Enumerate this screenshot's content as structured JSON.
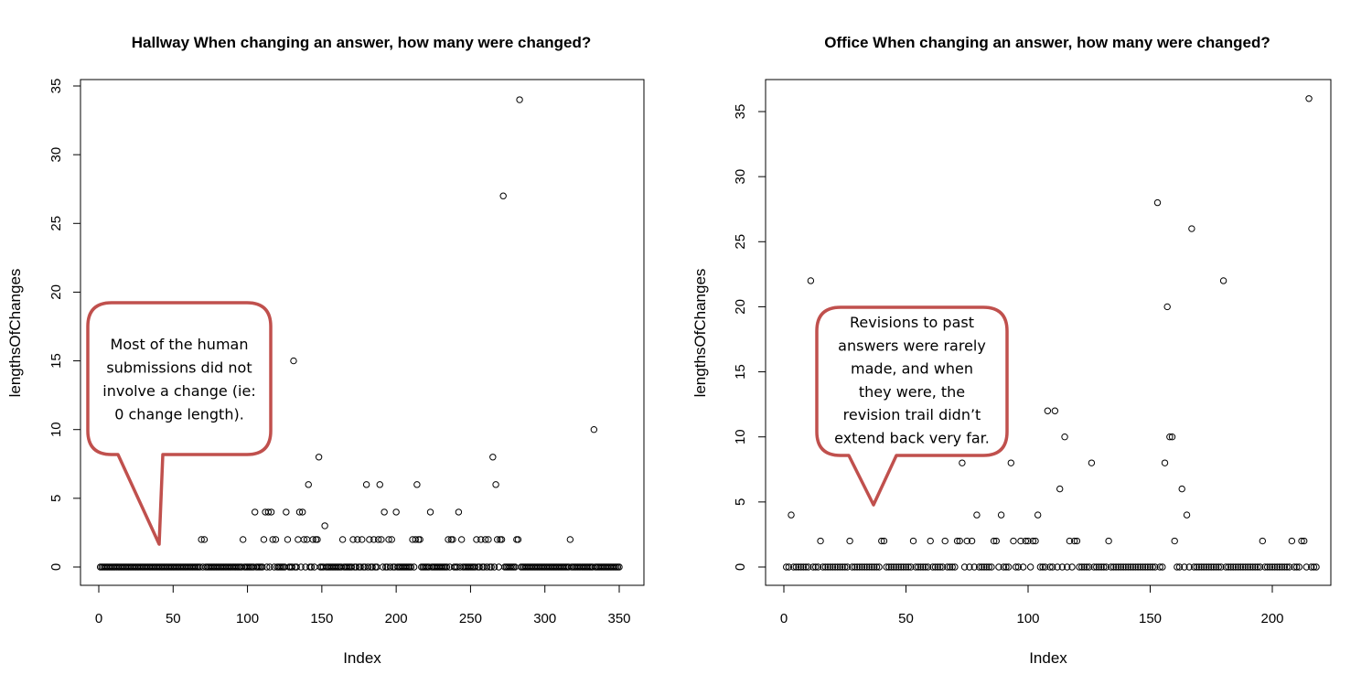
{
  "chart_data": [
    {
      "type": "scatter",
      "title": "Hallway When changing an answer, how many were changed?",
      "xlabel": "Index",
      "ylabel": "lengthsOfChanges",
      "xlim": [
        0,
        352
      ],
      "ylim": [
        0,
        35
      ],
      "xticks": [
        0,
        50,
        100,
        150,
        200,
        250,
        300,
        350
      ],
      "yticks": [
        0,
        5,
        10,
        15,
        20,
        25,
        30,
        35
      ],
      "grid": false,
      "marker": "open-circle",
      "n_points": 350,
      "default_value": 0,
      "nonzero_points": [
        [
          69,
          2
        ],
        [
          71,
          2
        ],
        [
          97,
          2
        ],
        [
          105,
          4
        ],
        [
          111,
          2
        ],
        [
          112,
          4
        ],
        [
          114,
          4
        ],
        [
          116,
          4
        ],
        [
          117,
          2
        ],
        [
          119,
          2
        ],
        [
          126,
          4
        ],
        [
          127,
          2
        ],
        [
          131,
          15
        ],
        [
          134,
          2
        ],
        [
          135,
          4
        ],
        [
          137,
          4
        ],
        [
          138,
          2
        ],
        [
          140,
          2
        ],
        [
          141,
          6
        ],
        [
          144,
          2
        ],
        [
          146,
          2
        ],
        [
          147,
          2
        ],
        [
          148,
          8
        ],
        [
          152,
          3
        ],
        [
          164,
          2
        ],
        [
          171,
          2
        ],
        [
          174,
          2
        ],
        [
          177,
          2
        ],
        [
          180,
          6
        ],
        [
          182,
          2
        ],
        [
          185,
          2
        ],
        [
          188,
          2
        ],
        [
          189,
          6
        ],
        [
          190,
          2
        ],
        [
          192,
          4
        ],
        [
          195,
          2
        ],
        [
          197,
          2
        ],
        [
          200,
          4
        ],
        [
          211,
          2
        ],
        [
          213,
          2
        ],
        [
          214,
          6
        ],
        [
          215,
          2
        ],
        [
          216,
          2
        ],
        [
          223,
          4
        ],
        [
          235,
          2
        ],
        [
          237,
          2
        ],
        [
          238,
          2
        ],
        [
          242,
          4
        ],
        [
          244,
          2
        ],
        [
          254,
          2
        ],
        [
          257,
          2
        ],
        [
          260,
          2
        ],
        [
          262,
          2
        ],
        [
          265,
          8
        ],
        [
          267,
          6
        ],
        [
          268,
          2
        ],
        [
          270,
          2
        ],
        [
          271,
          2
        ],
        [
          272,
          27
        ],
        [
          281,
          2
        ],
        [
          282,
          2
        ],
        [
          283,
          34
        ],
        [
          317,
          2
        ],
        [
          333,
          10
        ]
      ],
      "annotation": "Most of the human submissions did not involve a change (ie: 0 change length)."
    },
    {
      "type": "scatter",
      "title": "Office When changing an answer, how many were changed?",
      "xlabel": "Index",
      "ylabel": "lengthsOfChanges",
      "xlim": [
        0,
        218
      ],
      "ylim": [
        0,
        36
      ],
      "xticks": [
        0,
        50,
        100,
        150,
        200
      ],
      "yticks": [
        0,
        5,
        10,
        15,
        20,
        25,
        30,
        35
      ],
      "grid": false,
      "marker": "open-circle",
      "n_points": 218,
      "default_value": 0,
      "nonzero_points": [
        [
          3,
          4
        ],
        [
          11,
          22
        ],
        [
          15,
          2
        ],
        [
          27,
          2
        ],
        [
          40,
          2
        ],
        [
          41,
          2
        ],
        [
          53,
          2
        ],
        [
          60,
          2
        ],
        [
          66,
          2
        ],
        [
          71,
          2
        ],
        [
          72,
          2
        ],
        [
          73,
          8
        ],
        [
          75,
          2
        ],
        [
          77,
          2
        ],
        [
          79,
          4
        ],
        [
          86,
          2
        ],
        [
          87,
          2
        ],
        [
          89,
          4
        ],
        [
          93,
          8
        ],
        [
          94,
          2
        ],
        [
          97,
          2
        ],
        [
          99,
          2
        ],
        [
          100,
          2
        ],
        [
          102,
          2
        ],
        [
          103,
          2
        ],
        [
          104,
          4
        ],
        [
          108,
          12
        ],
        [
          111,
          12
        ],
        [
          113,
          6
        ],
        [
          115,
          10
        ],
        [
          117,
          2
        ],
        [
          119,
          2
        ],
        [
          120,
          2
        ],
        [
          126,
          8
        ],
        [
          133,
          2
        ],
        [
          153,
          28
        ],
        [
          156,
          8
        ],
        [
          157,
          20
        ],
        [
          158,
          10
        ],
        [
          159,
          10
        ],
        [
          160,
          2
        ],
        [
          163,
          6
        ],
        [
          165,
          4
        ],
        [
          167,
          26
        ],
        [
          180,
          22
        ],
        [
          196,
          2
        ],
        [
          208,
          2
        ],
        [
          212,
          2
        ],
        [
          213,
          2
        ],
        [
          215,
          36
        ]
      ],
      "annotation": "Revisions to past answers were rarely made, and when they were, the revision trail didn’t extend back very far."
    }
  ],
  "colors": {
    "points": "#000000",
    "callout_border": "#c0504d",
    "callout_fill": "#ffffff",
    "axes": "#000000"
  }
}
